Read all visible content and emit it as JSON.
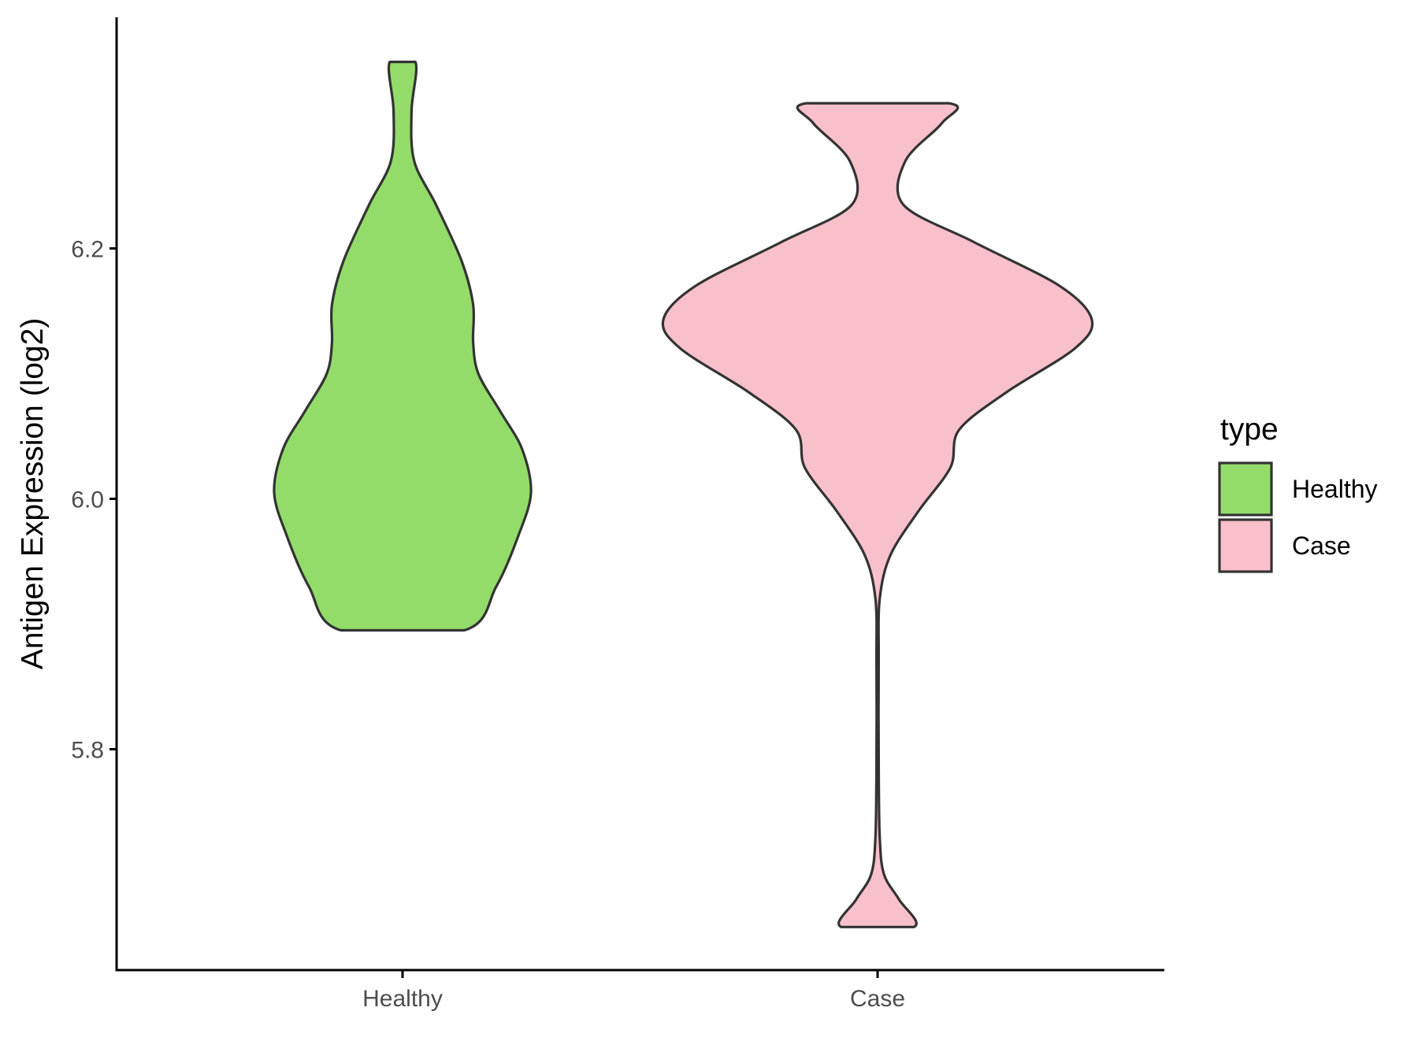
{
  "chart_data": {
    "type": "violin",
    "ylabel": "Antigen Expression (log2)",
    "ylim": [
      5.63,
      6.39
    ],
    "yticks": [
      "5.8",
      "6.0",
      "6.2"
    ],
    "yticks_values": [
      5.8,
      6.0,
      6.2
    ],
    "categories": [
      "Healthy",
      "Case"
    ],
    "legend": {
      "title": "type",
      "placement": "right",
      "entries": [
        {
          "label": "Healthy",
          "color": "#93dc6a"
        },
        {
          "label": "Case",
          "color": "#f8c0cb"
        }
      ]
    },
    "series": [
      {
        "name": "Healthy",
        "color": "#93dc6a",
        "min": 5.895,
        "max": 6.349,
        "density": [
          [
            5.895,
            0.48
          ],
          [
            5.93,
            0.73
          ],
          [
            5.97,
            0.9
          ],
          [
            6.005,
            1.0
          ],
          [
            6.04,
            0.93
          ],
          [
            6.07,
            0.76
          ],
          [
            6.1,
            0.59
          ],
          [
            6.125,
            0.55
          ],
          [
            6.155,
            0.55
          ],
          [
            6.19,
            0.46
          ],
          [
            6.235,
            0.26
          ],
          [
            6.27,
            0.09
          ],
          [
            6.31,
            0.07
          ],
          [
            6.349,
            0.1
          ]
        ]
      },
      {
        "name": "Case",
        "color": "#f8c0cb",
        "min": 5.658,
        "max": 6.316,
        "density": [
          [
            5.658,
            0.17
          ],
          [
            5.68,
            0.1
          ],
          [
            5.7,
            0.03
          ],
          [
            5.73,
            0.01
          ],
          [
            5.79,
            0.005
          ],
          [
            5.87,
            0.005
          ],
          [
            5.92,
            0.01
          ],
          [
            5.955,
            0.06
          ],
          [
            5.99,
            0.19
          ],
          [
            6.025,
            0.34
          ],
          [
            6.055,
            0.38
          ],
          [
            6.085,
            0.6
          ],
          [
            6.12,
            0.92
          ],
          [
            6.143,
            1.0
          ],
          [
            6.17,
            0.85
          ],
          [
            6.205,
            0.45
          ],
          [
            6.235,
            0.12
          ],
          [
            6.27,
            0.13
          ],
          [
            6.3,
            0.3
          ],
          [
            6.316,
            0.33
          ]
        ]
      }
    ]
  }
}
